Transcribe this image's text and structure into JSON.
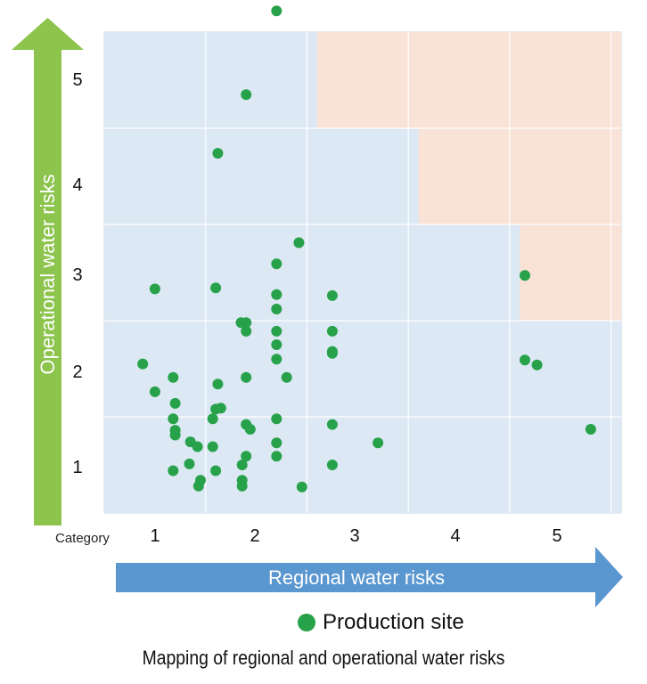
{
  "chart_data": {
    "type": "scatter",
    "title": "",
    "caption": "Mapping of regional and operational water risks",
    "xlabel": "Regional water risks",
    "ylabel": "Operational water risks",
    "category_label": "Category",
    "x_ticks": [
      "1",
      "2",
      "3",
      "4",
      "5"
    ],
    "y_ticks": [
      "1",
      "2",
      "3",
      "4",
      "5"
    ],
    "xlim": [
      0.5,
      5.6
    ],
    "ylim": [
      0.5,
      5.5
    ],
    "grid": true,
    "legend": {
      "position": "bottom-center",
      "entries": [
        "Production site"
      ]
    },
    "colors": {
      "point": "#27a24a",
      "low_risk_zone": "#dce8f4",
      "high_risk_zone": "#f9e2d6",
      "y_arrow": "#8cc44d",
      "x_arrow": "#5a96cf",
      "grid": "#ffffff"
    },
    "high_risk_zone_steps": [
      {
        "x_from": 2.6,
        "y_from": 4.5
      },
      {
        "x_from": 3.6,
        "y_from": 3.5
      },
      {
        "x_from": 4.6,
        "y_from": 2.5
      }
    ],
    "series": [
      {
        "name": "Production site",
        "points": [
          [
            2.2,
            5.72
          ],
          [
            1.9,
            4.85
          ],
          [
            1.62,
            4.24
          ],
          [
            2.42,
            3.31
          ],
          [
            2.2,
            3.09
          ],
          [
            1.0,
            2.83
          ],
          [
            1.6,
            2.84
          ],
          [
            2.2,
            2.77
          ],
          [
            2.75,
            2.76
          ],
          [
            2.2,
            2.62
          ],
          [
            1.85,
            2.48
          ],
          [
            1.9,
            2.48
          ],
          [
            1.9,
            2.39
          ],
          [
            2.2,
            2.39
          ],
          [
            2.75,
            2.39
          ],
          [
            2.2,
            2.25
          ],
          [
            2.75,
            2.18
          ],
          [
            2.75,
            2.16
          ],
          [
            2.2,
            2.1
          ],
          [
            4.65,
            2.09
          ],
          [
            4.77,
            2.04
          ],
          [
            4.65,
            2.97
          ],
          [
            0.88,
            2.05
          ],
          [
            1.0,
            1.76
          ],
          [
            1.18,
            1.91
          ],
          [
            1.62,
            1.84
          ],
          [
            1.9,
            1.91
          ],
          [
            2.3,
            1.91
          ],
          [
            1.2,
            1.64
          ],
          [
            1.65,
            1.59
          ],
          [
            1.6,
            1.58
          ],
          [
            1.18,
            1.48
          ],
          [
            1.57,
            1.48
          ],
          [
            2.2,
            1.48
          ],
          [
            1.9,
            1.42
          ],
          [
            1.94,
            1.37
          ],
          [
            2.75,
            1.42
          ],
          [
            5.3,
            1.37
          ],
          [
            1.2,
            1.36
          ],
          [
            1.2,
            1.31
          ],
          [
            1.35,
            1.24
          ],
          [
            1.42,
            1.19
          ],
          [
            1.57,
            1.19
          ],
          [
            2.2,
            1.23
          ],
          [
            3.2,
            1.23
          ],
          [
            1.9,
            1.09
          ],
          [
            2.2,
            1.09
          ],
          [
            1.34,
            1.01
          ],
          [
            1.86,
            1.0
          ],
          [
            2.75,
            1.0
          ],
          [
            1.18,
            0.94
          ],
          [
            1.6,
            0.94
          ],
          [
            1.45,
            0.84
          ],
          [
            1.86,
            0.84
          ],
          [
            1.43,
            0.78
          ],
          [
            1.86,
            0.78
          ],
          [
            2.45,
            0.77
          ]
        ]
      }
    ]
  }
}
